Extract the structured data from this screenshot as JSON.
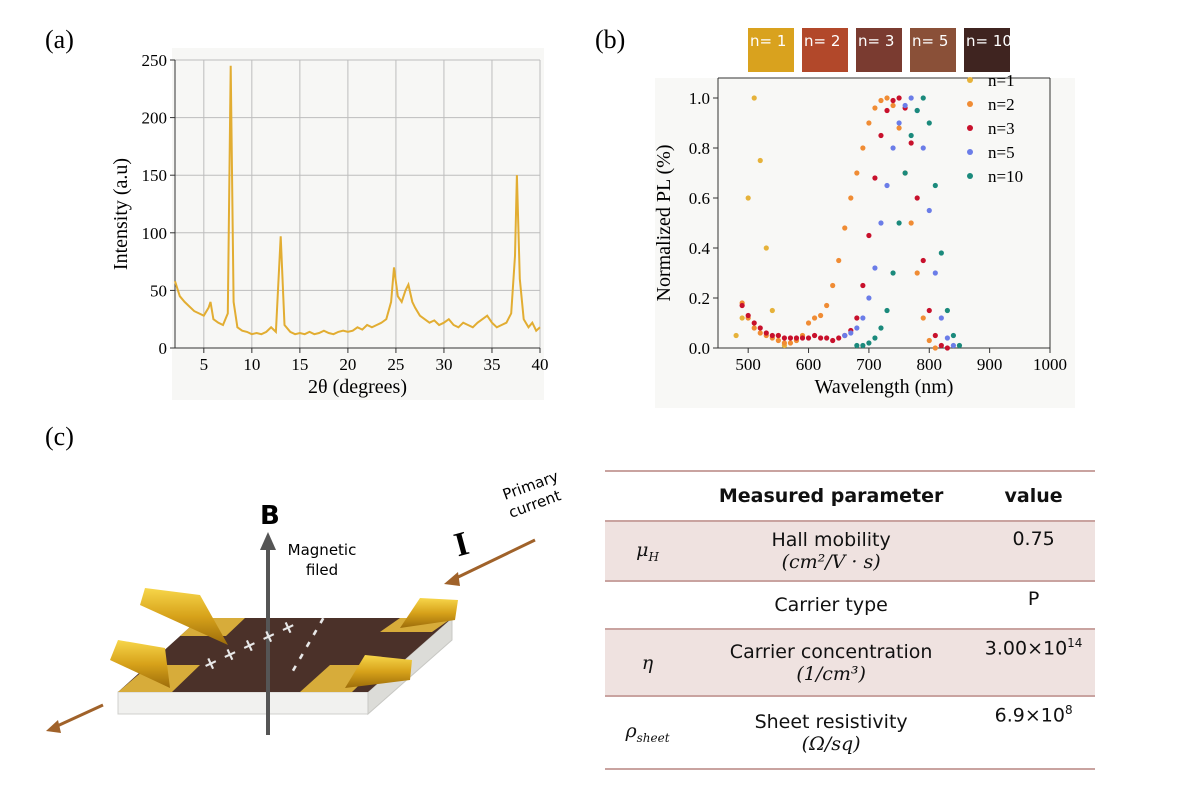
{
  "chart_data": [
    {
      "type": "line",
      "panel": "(a)",
      "xlabel": "2θ (degrees)",
      "ylabel": "Intensity (a.u)",
      "color": "#e2ad32",
      "grid": true,
      "xlim": [
        2,
        40
      ],
      "ylim": [
        0,
        250
      ],
      "xticks": [
        5,
        10,
        15,
        20,
        25,
        30,
        35,
        40
      ],
      "yticks": [
        0,
        50,
        100,
        150,
        200,
        250
      ],
      "x": [
        2,
        2.5,
        3,
        3.5,
        4,
        4.5,
        5,
        5.5,
        5.7,
        6,
        6.5,
        7,
        7.5,
        7.8,
        8.1,
        8.5,
        9,
        9.5,
        10,
        10.5,
        11,
        11.5,
        12,
        12.5,
        13,
        13.4,
        14,
        14.5,
        15,
        15.5,
        16,
        16.5,
        17,
        17.5,
        18,
        18.5,
        19,
        19.5,
        20,
        20.5,
        21,
        21.5,
        22,
        22.5,
        23,
        23.5,
        24,
        24.5,
        24.8,
        25.2,
        25.6,
        26,
        26.3,
        26.7,
        27,
        27.5,
        28,
        28.5,
        29,
        29.5,
        30,
        30.5,
        31,
        31.5,
        32,
        32.5,
        33,
        33.5,
        34,
        34.5,
        35,
        35.5,
        36,
        36.5,
        37,
        37.4,
        37.6,
        37.9,
        38.3,
        38.8,
        39.2,
        39.6,
        40
      ],
      "values": [
        58,
        45,
        40,
        36,
        32,
        30,
        28,
        35,
        40,
        25,
        22,
        20,
        30,
        245,
        40,
        18,
        15,
        14,
        12,
        13,
        12,
        14,
        18,
        14,
        97,
        20,
        14,
        12,
        13,
        12,
        14,
        12,
        13,
        15,
        13,
        12,
        14,
        15,
        14,
        15,
        18,
        16,
        20,
        18,
        20,
        22,
        25,
        40,
        70,
        45,
        40,
        50,
        55,
        40,
        35,
        28,
        25,
        22,
        24,
        20,
        22,
        25,
        20,
        18,
        22,
        20,
        18,
        22,
        25,
        28,
        22,
        18,
        20,
        22,
        30,
        80,
        150,
        60,
        25,
        18,
        22,
        15,
        18
      ]
    },
    {
      "type": "scatter",
      "panel": "(b)",
      "xlabel": "Wavelength (nm)",
      "ylabel": "Normalized PL (%)",
      "legend": "upper right",
      "xlim": [
        450,
        1000
      ],
      "ylim": [
        0,
        1.08
      ],
      "xticks": [
        500,
        600,
        700,
        800,
        900,
        1000
      ],
      "yticks": [
        {
          "value": 0,
          "label": "0.0"
        },
        0.2,
        0.4,
        0.6,
        0.8,
        {
          "value": 1,
          "label": "1.0"
        }
      ],
      "x": [
        470,
        480,
        490,
        500,
        510,
        520,
        530,
        540,
        550,
        560,
        570,
        580,
        590,
        600,
        610,
        620,
        630,
        640,
        650,
        660,
        670,
        680,
        690,
        700,
        710,
        720,
        730,
        740,
        750,
        760,
        770,
        780,
        790,
        800,
        810,
        820,
        830,
        840,
        850,
        860
      ],
      "series": [
        {
          "name": "n=1",
          "color": "#e6b23a",
          "values": [
            null,
            0.05,
            0.12,
            0.6,
            1.0,
            0.75,
            0.4,
            0.15,
            0.05,
            0.01,
            null,
            null,
            null,
            null,
            null,
            null,
            null,
            null,
            null,
            null,
            null,
            null,
            null,
            null,
            null,
            null,
            null,
            null,
            null,
            null,
            null,
            null,
            null,
            null,
            null,
            null,
            null,
            null,
            null,
            null
          ]
        },
        {
          "name": "n=2",
          "color": "#f08c34",
          "values": [
            null,
            null,
            0.18,
            0.12,
            0.08,
            0.06,
            0.05,
            0.04,
            0.03,
            0.02,
            0.02,
            0.03,
            0.05,
            0.1,
            0.12,
            0.13,
            0.17,
            0.25,
            0.35,
            0.48,
            0.6,
            0.7,
            0.8,
            0.9,
            0.96,
            0.99,
            1.0,
            0.97,
            0.88,
            0.7,
            0.5,
            0.3,
            0.12,
            0.03,
            0.0,
            null,
            null,
            null,
            null,
            null
          ]
        },
        {
          "name": "n=3",
          "color": "#c8112c",
          "values": [
            null,
            null,
            0.17,
            0.13,
            0.1,
            0.08,
            0.06,
            0.05,
            0.05,
            0.04,
            0.04,
            0.04,
            0.04,
            0.04,
            0.05,
            0.04,
            0.04,
            0.03,
            0.04,
            0.05,
            0.07,
            0.12,
            0.25,
            0.45,
            0.68,
            0.85,
            0.95,
            0.99,
            1.0,
            0.96,
            0.82,
            0.6,
            0.35,
            0.15,
            0.05,
            0.01,
            0.0,
            null,
            null,
            null
          ]
        },
        {
          "name": "n=5",
          "color": "#6b7de8",
          "values": [
            null,
            null,
            null,
            null,
            null,
            null,
            null,
            null,
            null,
            null,
            null,
            null,
            null,
            null,
            null,
            null,
            null,
            null,
            null,
            0.05,
            0.06,
            0.08,
            0.12,
            0.2,
            0.32,
            0.5,
            0.65,
            0.8,
            0.9,
            0.97,
            1.0,
            0.95,
            0.8,
            0.55,
            0.3,
            0.12,
            0.04,
            0.01,
            null,
            null
          ]
        },
        {
          "name": "n=10",
          "color": "#1b8a7c",
          "values": [
            null,
            null,
            null,
            null,
            null,
            null,
            null,
            null,
            null,
            null,
            null,
            null,
            null,
            null,
            null,
            null,
            null,
            null,
            null,
            null,
            null,
            0.01,
            0.01,
            0.02,
            0.04,
            0.08,
            0.15,
            0.3,
            0.5,
            0.7,
            0.85,
            0.95,
            1.0,
            0.9,
            0.65,
            0.38,
            0.15,
            0.05,
            0.01,
            null
          ]
        }
      ]
    }
  ],
  "swatches": [
    {
      "label": "n= 1",
      "color": "#d9a21e"
    },
    {
      "label": "n= 2",
      "color": "#b2482a"
    },
    {
      "label": "n= 3",
      "color": "#7a3b30"
    },
    {
      "label": "n= 5",
      "color": "#8a5038"
    },
    {
      "label": "n= 10",
      "color": "#3f2420"
    }
  ],
  "diagram": {
    "panel": "(c)",
    "field_symbol": "B",
    "field_label": [
      "Magnetic",
      "filed"
    ],
    "current_symbol": "I",
    "current_label": [
      "Primary",
      "current"
    ],
    "plus_charges": "+ + + + +",
    "minus_charges": "- - - - -"
  },
  "table": {
    "header": [
      "Measured parameter",
      "value"
    ],
    "rows": [
      {
        "symbol": {
          "base": "μ",
          "sub": "H"
        },
        "parameter": "Hall mobility",
        "unit": "(cm²/V · s)",
        "value": {
          "base": "0.75"
        }
      },
      {
        "parameter": "Carrier type",
        "value": {
          "base": "P"
        }
      },
      {
        "symbol": {
          "base": "η"
        },
        "parameter": "Carrier concentration",
        "unit": "(1/cm³)",
        "value": {
          "base": "3.00×10",
          "sup": "14"
        }
      },
      {
        "symbol": {
          "base": "ρ",
          "sub": "sheet"
        },
        "parameter": "Sheet resistivity",
        "unit": "(Ω/sq)",
        "value": {
          "base": "6.9×10",
          "sup": "8"
        }
      }
    ]
  }
}
